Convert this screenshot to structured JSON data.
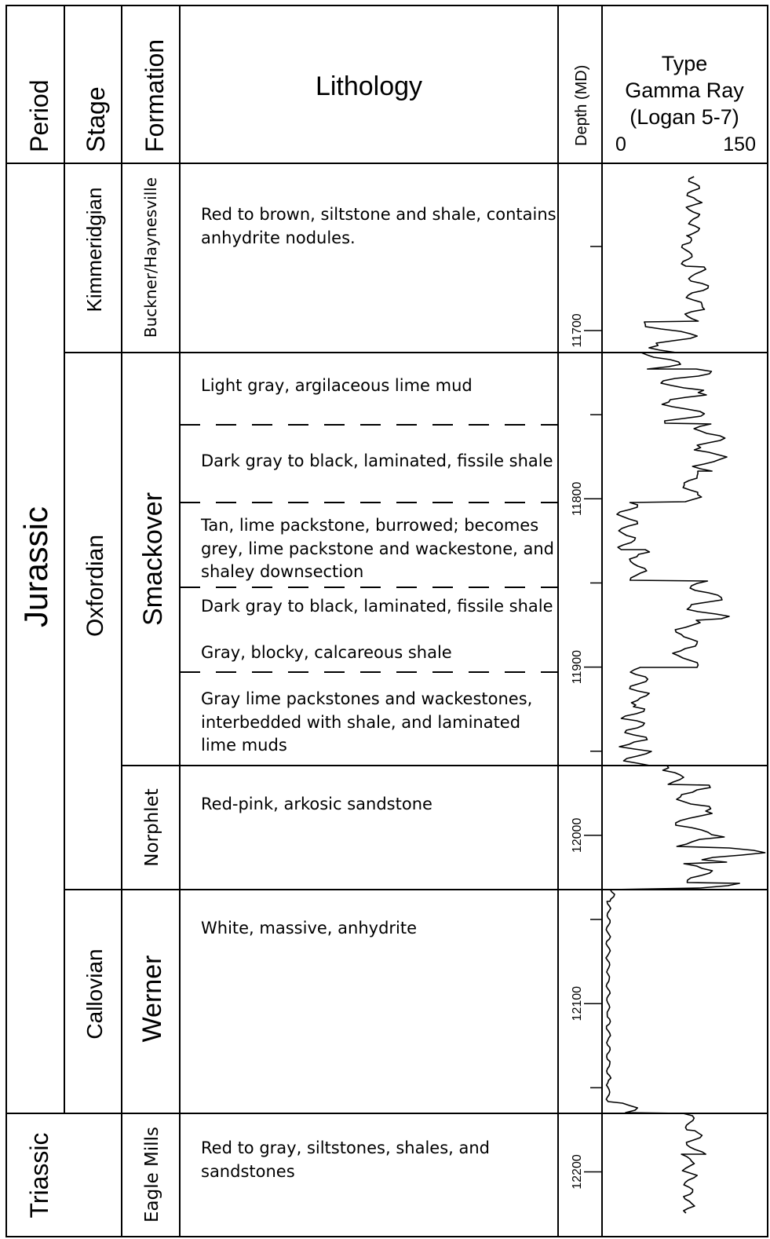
{
  "headers": {
    "period": "Period",
    "stage": "Stage",
    "formation": "Formation",
    "lithology": "Lithology",
    "depth": "Depth (MD)",
    "gamma_title_1": "Type",
    "gamma_title_2": "Gamma Ray",
    "gamma_title_3": "(Logan 5-7)",
    "gamma_min": "0",
    "gamma_max": "150"
  },
  "periods": {
    "jurassic": "Jurassic",
    "triassic": "Triassic"
  },
  "stages": {
    "kimmeridgian": "Kimmeridgian",
    "oxfordian": "Oxfordian",
    "callovian": "Callovian"
  },
  "formations": {
    "buckner": "Buckner/Haynesville",
    "smackover": "Smackover",
    "norphlet": "Norphlet",
    "werner": "Werner",
    "eagle_mills": "Eagle Mills"
  },
  "lithology": {
    "buckner_1": "Red to brown, siltstone and shale, contains",
    "buckner_2": "anhydrite nodules.",
    "smk_a": "Light gray, argilaceous lime mud",
    "smk_b": "Dark gray to black, laminated, fissile shale",
    "smk_c1": "Tan, lime packstone, burrowed; becomes",
    "smk_c2": "grey, lime packstone and wackestone, and",
    "smk_c3": "shaley downsection",
    "smk_d": "Dark gray to black, laminated, fissile shale",
    "smk_e": "Gray, blocky, calcareous shale",
    "smk_f1": "Gray lime packstones and wackestones,",
    "smk_f2": "interbedded with shale, and laminated",
    "smk_f3": "lime muds",
    "norphlet": "Red-pink, arkosic sandstone",
    "werner": "White, massive, anhydrite",
    "eagle_1": "Red to gray, siltstones, shales, and",
    "eagle_2": "sandstones"
  },
  "depth_labels": [
    "11700",
    "11800",
    "11900",
    "12000",
    "12100",
    "12200"
  ]
}
